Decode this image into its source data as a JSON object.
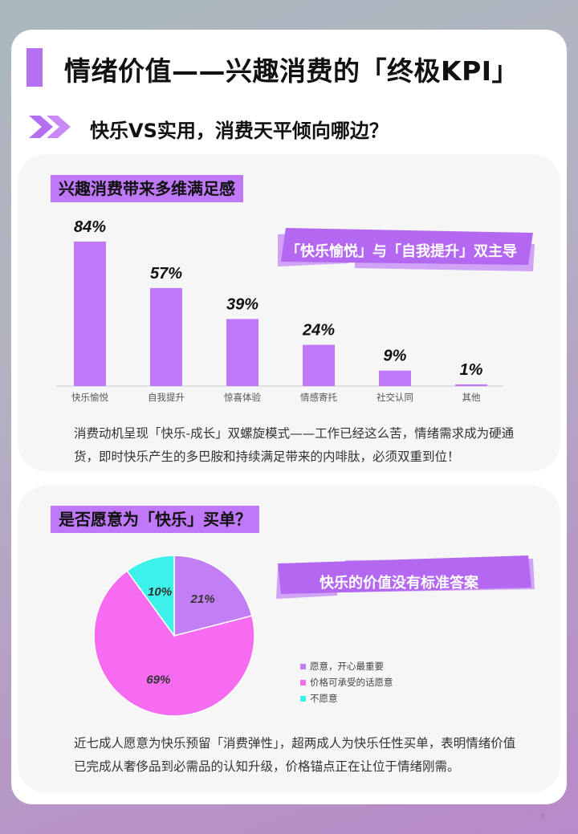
{
  "page": {
    "title": "情绪价值——兴趣消费的「终极KPI」",
    "subtitle": "快乐VS实用，消费天平倾向哪边？",
    "page_number": "8",
    "accent_color": "#bf78f7"
  },
  "section1": {
    "heading": "兴趣消费带来多维满足感",
    "banner": "「快乐愉悦」与「自我提升」双主导",
    "paragraph": "消费动机呈现「快乐-成长」双螺旋模式——工作已经这么苦，情绪需求成为硬通货，即时快乐产生的多巴胺和持续满足带来的内啡肽，必须双重到位！"
  },
  "section2": {
    "heading": "是否愿意为「快乐」买单？",
    "banner": "快乐的价值没有标准答案",
    "paragraph": "近七成人愿意为快乐预留「消费弹性」，超两成人为快乐任性买单，表明情绪价值已完成从奢侈品到必需品的认知升级，价格锚点正在让位于情绪刚需。"
  },
  "chart_data": [
    {
      "type": "bar",
      "categories": [
        "快乐愉悦",
        "自我提升",
        "惊喜体验",
        "情感寄托",
        "社交认同",
        "其他"
      ],
      "values": [
        84,
        57,
        39,
        24,
        9,
        1
      ],
      "value_labels": [
        "84%",
        "57%",
        "39%",
        "24%",
        "9%",
        "1%"
      ],
      "ylim": [
        0,
        100
      ],
      "bar_color": "#c078f8",
      "grid": false,
      "legend": "none"
    },
    {
      "type": "pie",
      "categories": [
        "愿意，开心最重要",
        "价格可承受的话愿意",
        "不愿意"
      ],
      "values": [
        21,
        69,
        10
      ],
      "value_labels": [
        "21%",
        "69%",
        "10%"
      ],
      "colors": [
        "#c27ef5",
        "#f56cf1",
        "#3ef1ea"
      ],
      "legend": "right"
    }
  ]
}
